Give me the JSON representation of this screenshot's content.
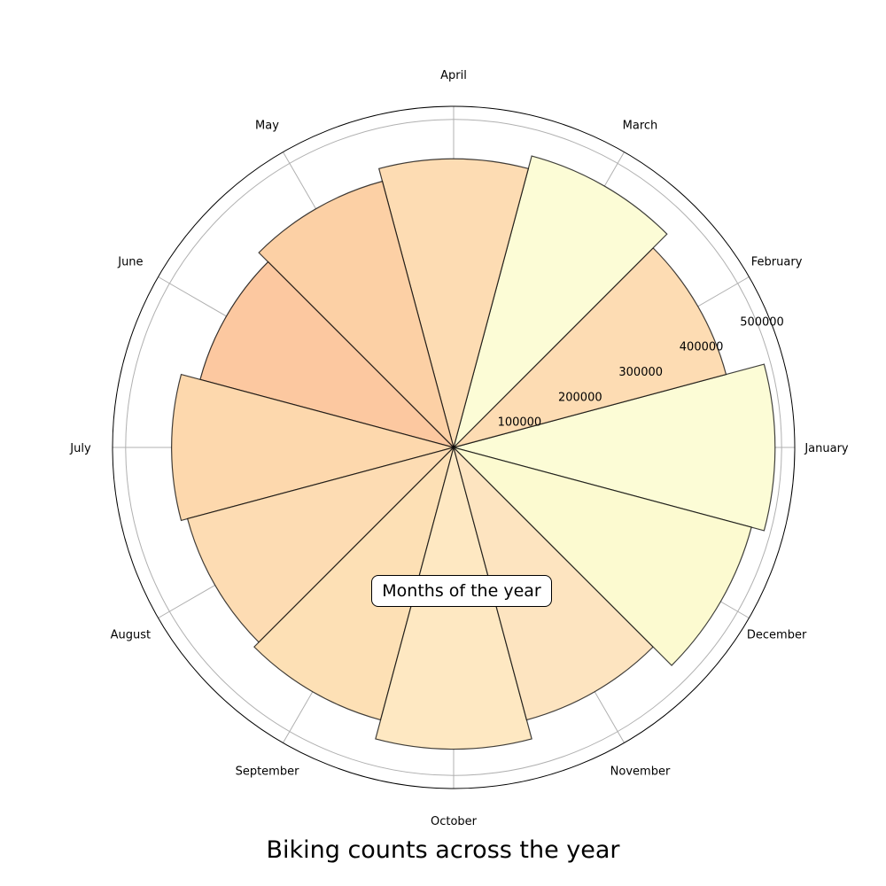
{
  "chart_data": {
    "type": "polar-bar",
    "title": "Biking counts across the year",
    "annotation": "Months of the year",
    "categories": [
      "January",
      "February",
      "March",
      "April",
      "May",
      "June",
      "July",
      "August",
      "September",
      "October",
      "November",
      "December"
    ],
    "values": [
      490000,
      430000,
      460000,
      440000,
      420000,
      400000,
      430000,
      420000,
      430000,
      460000,
      430000,
      470000
    ],
    "colors": [
      "#fcfcd6",
      "#fddcb3",
      "#fcfcd6",
      "#fddcb3",
      "#fcd0a5",
      "#fcc8a0",
      "#fdd8ad",
      "#fddcb3",
      "#fde0b5",
      "#fee8c2",
      "#fde4c0",
      "#fcfad0"
    ],
    "radial_ticks": [
      "100000",
      "200000",
      "300000",
      "400000",
      "500000"
    ],
    "radial_tick_values": [
      100000,
      200000,
      300000,
      400000,
      500000
    ],
    "rlim": [
      0,
      520000
    ],
    "grid": true
  }
}
